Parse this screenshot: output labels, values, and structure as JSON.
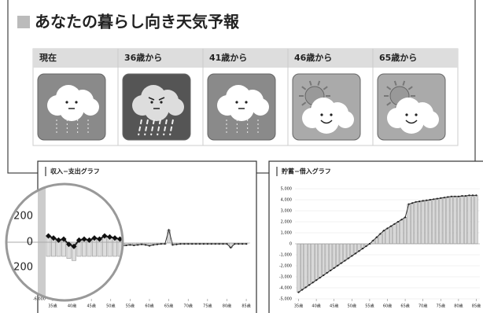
{
  "header": {
    "title": "あなたの暮らし向き天気予報"
  },
  "forecast": [
    "現在",
    "36歳から",
    "41歳から",
    "46歳から",
    "65歳から"
  ],
  "zoom_labels": [
    ",200",
    "0",
    "200"
  ],
  "chart_data": [
    {
      "type": "bar-line",
      "title": "収入−支出グラフ",
      "color": "#d8d8d8",
      "x": [
        35,
        36,
        37,
        38,
        39,
        40,
        41,
        42,
        43,
        44,
        45,
        46,
        47,
        48,
        49,
        50,
        51,
        52,
        53,
        54,
        55,
        56,
        57,
        58,
        59,
        60,
        61,
        62,
        63,
        64,
        65,
        66,
        67,
        68,
        69,
        70,
        71,
        72,
        73,
        74,
        75,
        76,
        77,
        78,
        79,
        80,
        81,
        82,
        83,
        84,
        85
      ],
      "values": [
        300,
        200,
        100,
        150,
        -100,
        -200,
        100,
        150,
        100,
        200,
        150,
        300,
        250,
        200,
        150,
        100,
        -400,
        -350,
        -300,
        -250,
        -200,
        -250,
        -200,
        -150,
        -200,
        -300,
        -200,
        -150,
        -100,
        -100,
        1400,
        -200,
        -150,
        -100,
        -100,
        -100,
        -100,
        -100,
        -100,
        -100,
        -100,
        -100,
        -100,
        -100,
        -100,
        -100,
        -500,
        -100,
        -100,
        -100,
        -100
      ],
      "xlim": [
        34,
        86
      ],
      "xticks": [
        {
          "value": 35,
          "label": "35歳"
        },
        {
          "value": 40,
          "label": "40歳"
        },
        {
          "value": 45,
          "label": "45歳"
        },
        {
          "value": 50,
          "label": "50歳"
        },
        {
          "value": 55,
          "label": "55歳"
        },
        {
          "value": 60,
          "label": "60歳"
        },
        {
          "value": 65,
          "label": "65歳"
        },
        {
          "value": 70,
          "label": "70歳"
        },
        {
          "value": 75,
          "label": "75歳"
        },
        {
          "value": 80,
          "label": "80歳"
        },
        {
          "value": 85,
          "label": "85歳"
        }
      ],
      "ylim": [
        -6000,
        6000
      ],
      "yticks": [
        {
          "value": -6000,
          "label": "-6,000"
        }
      ],
      "grid": false
    },
    {
      "type": "bar-line",
      "title": "貯蓄−借入グラフ",
      "color": "#d8d8d8",
      "x": [
        35,
        36,
        37,
        38,
        39,
        40,
        41,
        42,
        43,
        44,
        45,
        46,
        47,
        48,
        49,
        50,
        51,
        52,
        53,
        54,
        55,
        56,
        57,
        58,
        59,
        60,
        61,
        62,
        63,
        64,
        65,
        66,
        67,
        68,
        69,
        70,
        71,
        72,
        73,
        74,
        75,
        76,
        77,
        78,
        79,
        80,
        81,
        82,
        83,
        84,
        85
      ],
      "values": [
        -4400,
        -4180,
        -3960,
        -3740,
        -3520,
        -3300,
        -3080,
        -2860,
        -2640,
        -2420,
        -2200,
        -1980,
        -1760,
        -1540,
        -1320,
        -1100,
        -880,
        -660,
        -440,
        -220,
        0,
        300,
        600,
        900,
        1200,
        1400,
        1600,
        1800,
        2000,
        2200,
        2400,
        3600,
        3700,
        3800,
        3850,
        3900,
        3950,
        4000,
        4050,
        4100,
        4150,
        4200,
        4250,
        4300,
        4300,
        4300,
        4350,
        4350,
        4400,
        4400,
        4400
      ],
      "xlim": [
        34,
        86
      ],
      "xticks": [
        {
          "value": 35,
          "label": "35歳"
        },
        {
          "value": 40,
          "label": "40歳"
        },
        {
          "value": 45,
          "label": "45歳"
        },
        {
          "value": 50,
          "label": "50歳"
        },
        {
          "value": 55,
          "label": "55歳"
        },
        {
          "value": 60,
          "label": "60歳"
        },
        {
          "value": 65,
          "label": "65歳"
        },
        {
          "value": 70,
          "label": "70歳"
        },
        {
          "value": 75,
          "label": "75歳"
        },
        {
          "value": 80,
          "label": "80歳"
        },
        {
          "value": 85,
          "label": "85歳"
        }
      ],
      "ylim": [
        -5000,
        5000
      ],
      "yticks": [
        {
          "value": 5000,
          "label": "5,000"
        },
        {
          "value": 4000,
          "label": "4,000"
        },
        {
          "value": 3000,
          "label": "3,000"
        },
        {
          "value": 2000,
          "label": "2,000"
        },
        {
          "value": 1000,
          "label": "1,000"
        },
        0,
        {
          "value": -1000,
          "label": "-1,000"
        },
        {
          "value": -2000,
          "label": "-2,000"
        },
        {
          "value": -3000,
          "label": "-3,000"
        },
        {
          "value": -4000,
          "label": "-4,000"
        },
        {
          "value": -5000,
          "label": "-5,000"
        }
      ],
      "grid": true
    }
  ]
}
